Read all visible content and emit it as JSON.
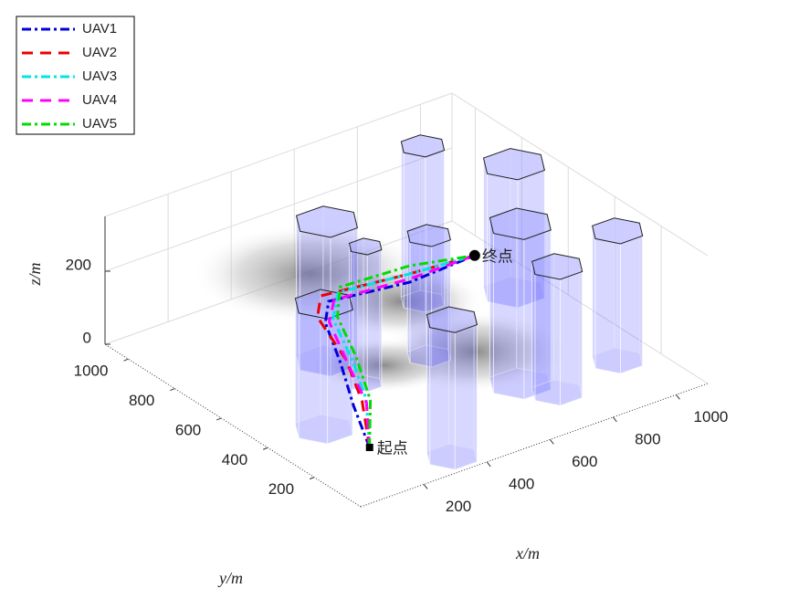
{
  "chart_data": {
    "type": "line3d",
    "xlabel": "x/m",
    "ylabel": "y/m",
    "zlabel": "z/m",
    "xlim": [
      0,
      1100
    ],
    "ylim": [
      0,
      1100
    ],
    "zlim": [
      0,
      350
    ],
    "xticks": [
      200,
      400,
      600,
      800,
      1000
    ],
    "yticks": [
      200,
      400,
      600,
      800,
      1000
    ],
    "zticks": [
      0,
      200
    ],
    "legend": "upper left",
    "obstacles": [
      {
        "x": 784,
        "y": 797,
        "r": 60,
        "h": 425
      },
      {
        "x": 999,
        "y": 696,
        "r": 85,
        "h": 350
      },
      {
        "x": 399,
        "y": 687,
        "r": 85,
        "h": 380
      },
      {
        "x": 621,
        "y": 549,
        "r": 60,
        "h": 330
      },
      {
        "x": 404,
        "y": 528,
        "r": 45,
        "h": 375
      },
      {
        "x": 719,
        "y": 289,
        "r": 85,
        "h": 437
      },
      {
        "x": 990,
        "y": 239,
        "r": 70,
        "h": 355
      },
      {
        "x": 765,
        "y": 193,
        "r": 70,
        "h": 345
      },
      {
        "x": 174,
        "y": 394,
        "r": 80,
        "h": 342
      },
      {
        "x": 346,
        "y": 77,
        "r": 70,
        "h": 375
      }
    ],
    "start": {
      "label": "起点",
      "x": 208,
      "y": 244,
      "z": 0
    },
    "end": {
      "label": "终点",
      "x": 802,
      "y": 598,
      "z": 200
    },
    "series": [
      {
        "name": "UAV1",
        "color": "#0000dd",
        "linestyle": "-.",
        "x": [
          208,
          250,
          290,
          330,
          370,
          590,
          802
        ],
        "y": [
          244,
          370,
          480,
          600,
          640,
          590,
          598
        ],
        "z": [
          0,
          50,
          110,
          160,
          190,
          195,
          200
        ]
      },
      {
        "name": "UAV2",
        "color": "#ee0000",
        "linestyle": "--",
        "x": [
          208,
          270,
          300,
          320,
          360,
          600,
          802
        ],
        "y": [
          244,
          360,
          470,
          620,
          660,
          620,
          598
        ],
        "z": [
          0,
          60,
          120,
          170,
          200,
          200,
          200
        ]
      },
      {
        "name": "UAV3",
        "color": "#00e5e5",
        "linestyle": "-.",
        "x": [
          208,
          275,
          310,
          340,
          400,
          610,
          802
        ],
        "y": [
          244,
          350,
          460,
          580,
          640,
          610,
          598
        ],
        "z": [
          0,
          70,
          125,
          175,
          205,
          205,
          200
        ]
      },
      {
        "name": "UAV4",
        "color": "#ff00ff",
        "linestyle": "--",
        "x": [
          208,
          280,
          300,
          335,
          380,
          600,
          802
        ],
        "y": [
          244,
          355,
          465,
          590,
          630,
          600,
          598
        ],
        "z": [
          0,
          55,
          115,
          165,
          195,
          198,
          200
        ]
      },
      {
        "name": "UAV5",
        "color": "#00dd00",
        "linestyle": "-.",
        "x": [
          208,
          285,
          320,
          350,
          410,
          620,
          802
        ],
        "y": [
          244,
          345,
          455,
          575,
          645,
          630,
          598
        ],
        "z": [
          0,
          65,
          130,
          180,
          215,
          215,
          200
        ]
      }
    ]
  }
}
